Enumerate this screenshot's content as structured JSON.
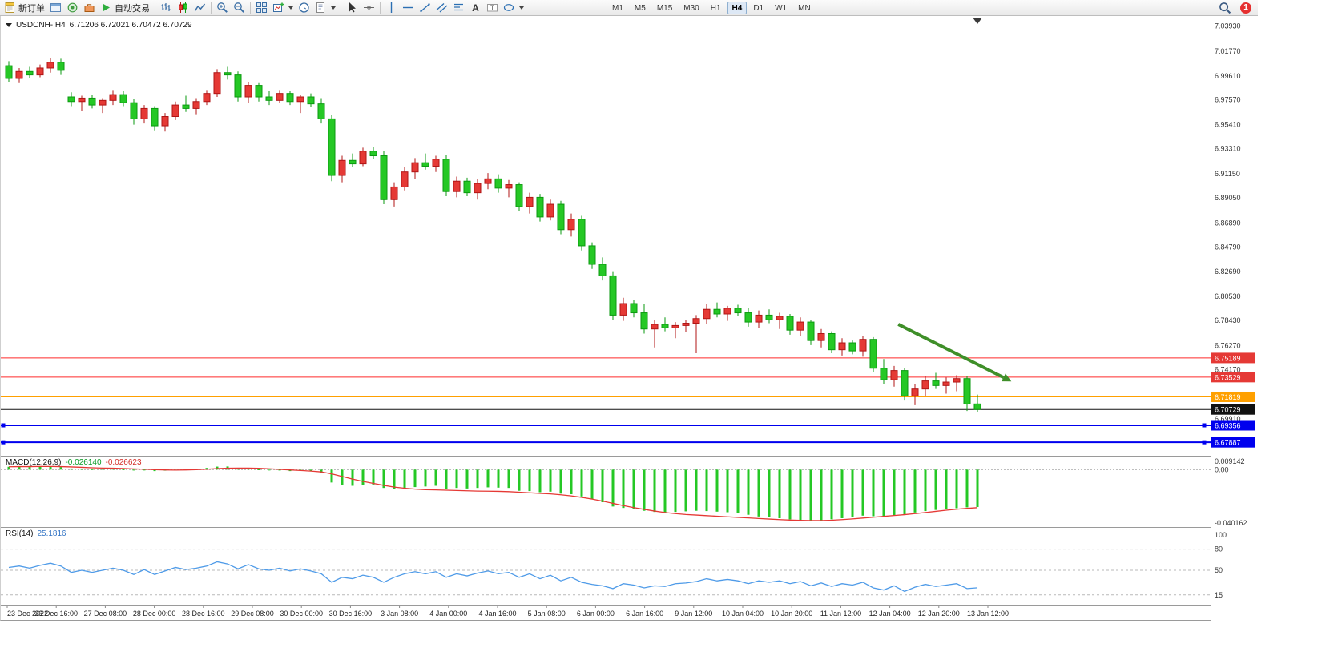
{
  "toolbar": {
    "new_order_label": "新订单",
    "auto_trading_label": "自动交易",
    "timeframes": [
      "M1",
      "M5",
      "M15",
      "M30",
      "H1",
      "H4",
      "D1",
      "W1",
      "MN"
    ],
    "active_timeframe": "H4",
    "notification_count": "1"
  },
  "chart": {
    "title_symbol": "USDCNH-,H4",
    "title_ohlc": "6.71206 6.72021 6.70472 6.70729"
  },
  "macd": {
    "label": "MACD(12,26,9)",
    "value1": "-0.026140",
    "value2": "-0.026623"
  },
  "rsi": {
    "label": "RSI(14)",
    "value": "25.1816"
  },
  "colors": {
    "up": "#e53935",
    "up_border": "#b01515",
    "down": "#25c825",
    "down_border": "#0b9a10",
    "macd_hist": "#25c825",
    "macd_signal": "#e53935",
    "rsi_line": "#4f9be8",
    "line_red": "#ff2a2a",
    "line_orange": "#ffa000",
    "line_blue": "#0000ee",
    "line_black": "#111111",
    "arrow_green": "#3f8f29",
    "badge": "#e53030"
  },
  "chart_data": [
    {
      "type": "candlestick",
      "symbol": "USDCNH-",
      "timeframe": "H4",
      "price_range": [
        6.6665,
        7.0446
      ],
      "y_axis_labels": [
        "7.03930",
        "7.01770",
        "6.99610",
        "6.97570",
        "6.95410",
        "6.93310",
        "6.91150",
        "6.89050",
        "6.86890",
        "6.84790",
        "6.82690",
        "6.80530",
        "6.78430",
        "6.76270",
        "6.74170",
        "6.72010",
        "6.69910",
        "6.67810"
      ],
      "x_axis_labels": [
        "23 Dec 2022",
        "23 Dec 16:00",
        "27 Dec 08:00",
        "28 Dec 00:00",
        "28 Dec 16:00",
        "29 Dec 08:00",
        "30 Dec 00:00",
        "30 Dec 16:00",
        "3 Jan 08:00",
        "4 Jan 00:00",
        "4 Jan 16:00",
        "5 Jan 08:00",
        "6 Jan 00:00",
        "6 Jan 16:00",
        "9 Jan 12:00",
        "10 Jan 04:00",
        "10 Jan 20:00",
        "11 Jan 12:00",
        "12 Jan 04:00",
        "12 Jan 20:00",
        "13 Jan 12:00"
      ],
      "h_lines": [
        {
          "price": 6.75189,
          "label": "6.75189",
          "color": "#ff2a2a",
          "tag_bg": "#e53935",
          "width": 1
        },
        {
          "price": 6.73529,
          "label": "6.73529",
          "color": "#ff2a2a",
          "tag_bg": "#e53935",
          "width": 1
        },
        {
          "price": 6.71819,
          "label": "6.71819",
          "color": "#ffa000",
          "tag_bg": "#ffa000",
          "width": 1
        },
        {
          "price": 6.70729,
          "label": "6.70729",
          "color": "#111111",
          "tag_bg": "#111111",
          "width": 1,
          "role": "current-price"
        },
        {
          "price": 6.69356,
          "label": "6.69356",
          "color": "#0000ee",
          "tag_bg": "#0000ee",
          "width": 2,
          "anchors": true
        },
        {
          "price": 6.67887,
          "label": "6.67887",
          "color": "#0000ee",
          "tag_bg": "#0000ee",
          "width": 2,
          "anchors": true
        }
      ],
      "arrow": {
        "from_index": 85.4,
        "from_price": 6.781,
        "to_index": 95.5,
        "to_price": 6.735
      },
      "shift_marker_index": 93,
      "ohlc": [
        [
          7.005,
          7.009,
          6.991,
          6.994
        ],
        [
          6.994,
          7.003,
          6.99,
          7.0
        ],
        [
          7.0,
          7.004,
          6.994,
          6.997
        ],
        [
          6.997,
          7.006,
          6.995,
          7.003
        ],
        [
          7.003,
          7.012,
          6.999,
          7.008
        ],
        [
          7.008,
          7.011,
          6.997,
          7.001
        ],
        [
          6.978,
          6.982,
          6.97,
          6.974
        ],
        [
          6.974,
          6.979,
          6.966,
          6.977
        ],
        [
          6.977,
          6.98,
          6.968,
          6.971
        ],
        [
          6.971,
          6.977,
          6.964,
          6.975
        ],
        [
          6.975,
          6.984,
          6.971,
          6.98
        ],
        [
          6.98,
          6.983,
          6.97,
          6.973
        ],
        [
          6.973,
          6.976,
          6.954,
          6.959
        ],
        [
          6.959,
          6.971,
          6.955,
          6.968
        ],
        [
          6.968,
          6.97,
          6.949,
          6.953
        ],
        [
          6.953,
          6.964,
          6.948,
          6.961
        ],
        [
          6.961,
          6.974,
          6.958,
          6.971
        ],
        [
          6.971,
          6.979,
          6.965,
          6.968
        ],
        [
          6.968,
          6.977,
          6.963,
          6.974
        ],
        [
          6.974,
          6.984,
          6.971,
          6.981
        ],
        [
          6.981,
          7.002,
          6.978,
          6.999
        ],
        [
          6.999,
          7.004,
          6.993,
          6.997
        ],
        [
          6.997,
          7.0,
          6.974,
          6.978
        ],
        [
          6.978,
          6.991,
          6.973,
          6.988
        ],
        [
          6.988,
          6.99,
          6.974,
          6.978
        ],
        [
          6.978,
          6.983,
          6.971,
          6.975
        ],
        [
          6.975,
          6.984,
          6.973,
          6.981
        ],
        [
          6.981,
          6.983,
          6.971,
          6.974
        ],
        [
          6.974,
          6.98,
          6.964,
          6.978
        ],
        [
          6.978,
          6.981,
          6.969,
          6.972
        ],
        [
          6.972,
          6.977,
          6.955,
          6.959
        ],
        [
          6.959,
          6.962,
          6.905,
          6.91
        ],
        [
          6.91,
          6.927,
          6.904,
          6.923
        ],
        [
          6.923,
          6.929,
          6.917,
          6.92
        ],
        [
          6.92,
          6.934,
          6.918,
          6.931
        ],
        [
          6.931,
          6.935,
          6.924,
          6.927
        ],
        [
          6.927,
          6.931,
          6.885,
          6.889
        ],
        [
          6.889,
          6.904,
          6.883,
          6.9
        ],
        [
          6.9,
          6.917,
          6.897,
          6.913
        ],
        [
          6.913,
          6.925,
          6.907,
          6.921
        ],
        [
          6.921,
          6.929,
          6.915,
          6.918
        ],
        [
          6.918,
          6.927,
          6.913,
          6.924
        ],
        [
          6.924,
          6.928,
          6.892,
          6.896
        ],
        [
          6.896,
          6.909,
          6.891,
          6.905
        ],
        [
          6.905,
          6.908,
          6.892,
          6.895
        ],
        [
          6.895,
          6.907,
          6.889,
          6.903
        ],
        [
          6.903,
          6.912,
          6.898,
          6.907
        ],
        [
          6.907,
          6.911,
          6.895,
          6.899
        ],
        [
          6.899,
          6.906,
          6.891,
          6.902
        ],
        [
          6.902,
          6.904,
          6.879,
          6.883
        ],
        [
          6.883,
          6.895,
          6.877,
          6.891
        ],
        [
          6.891,
          6.894,
          6.87,
          6.874
        ],
        [
          6.874,
          6.889,
          6.871,
          6.885
        ],
        [
          6.885,
          6.888,
          6.859,
          6.863
        ],
        [
          6.863,
          6.877,
          6.857,
          6.872
        ],
        [
          6.872,
          6.875,
          6.845,
          6.849
        ],
        [
          6.849,
          6.852,
          6.829,
          6.833
        ],
        [
          6.833,
          6.839,
          6.819,
          6.823
        ],
        [
          6.823,
          6.827,
          6.785,
          6.789
        ],
        [
          6.789,
          6.804,
          6.784,
          6.799
        ],
        [
          6.799,
          6.802,
          6.787,
          6.791
        ],
        [
          6.791,
          6.799,
          6.773,
          6.777
        ],
        [
          6.777,
          6.785,
          6.761,
          6.781
        ],
        [
          6.781,
          6.787,
          6.775,
          6.778
        ],
        [
          6.778,
          6.783,
          6.769,
          6.78
        ],
        [
          6.78,
          6.785,
          6.774,
          6.782
        ],
        [
          6.782,
          6.789,
          6.756,
          6.786
        ],
        [
          6.786,
          6.799,
          6.781,
          6.794
        ],
        [
          6.794,
          6.8,
          6.787,
          6.79
        ],
        [
          6.79,
          6.797,
          6.784,
          6.795
        ],
        [
          6.795,
          6.798,
          6.788,
          6.791
        ],
        [
          6.791,
          6.795,
          6.779,
          6.783
        ],
        [
          6.783,
          6.793,
          6.778,
          6.789
        ],
        [
          6.789,
          6.794,
          6.782,
          6.785
        ],
        [
          6.785,
          6.791,
          6.777,
          6.788
        ],
        [
          6.788,
          6.79,
          6.772,
          6.776
        ],
        [
          6.776,
          6.787,
          6.771,
          6.783
        ],
        [
          6.783,
          6.785,
          6.763,
          6.767
        ],
        [
          6.767,
          6.777,
          6.761,
          6.773
        ],
        [
          6.773,
          6.775,
          6.756,
          6.759
        ],
        [
          6.759,
          6.769,
          6.754,
          6.765
        ],
        [
          6.765,
          6.767,
          6.755,
          6.758
        ],
        [
          6.758,
          6.771,
          6.753,
          6.768
        ],
        [
          6.768,
          6.77,
          6.74,
          6.743
        ],
        [
          6.743,
          6.751,
          6.729,
          6.733
        ],
        [
          6.733,
          6.745,
          6.727,
          6.741
        ],
        [
          6.741,
          6.743,
          6.715,
          6.719
        ],
        [
          6.719,
          6.729,
          6.711,
          6.725
        ],
        [
          6.725,
          6.736,
          6.719,
          6.732
        ],
        [
          6.732,
          6.739,
          6.725,
          6.728
        ],
        [
          6.728,
          6.735,
          6.721,
          6.731
        ],
        [
          6.731,
          6.737,
          6.723,
          6.734
        ],
        [
          6.734,
          6.736,
          6.706,
          6.712
        ],
        [
          6.71206,
          6.72021,
          6.70472,
          6.70729
        ]
      ]
    },
    {
      "type": "bar",
      "name": "MACD",
      "range": [
        -0.040162,
        0.009142
      ],
      "scale_labels": [
        "0.009142",
        "0.00",
        "-0.040162"
      ],
      "histogram": [
        0.002,
        0.0022,
        0.0018,
        0.0021,
        0.0024,
        0.0018,
        0.0008,
        0.0005,
        0.0003,
        0.0005,
        0.0007,
        0.0002,
        -0.0006,
        -0.0003,
        -0.001,
        -0.0007,
        -0.0002,
        0.0002,
        0.0006,
        0.0012,
        0.0021,
        0.0022,
        0.0012,
        0.001,
        0.0002,
        -0.0004,
        -0.0006,
        -0.001,
        -0.0008,
        -0.0012,
        -0.0022,
        -0.009,
        -0.0108,
        -0.0113,
        -0.0108,
        -0.0104,
        -0.0128,
        -0.0134,
        -0.0128,
        -0.0122,
        -0.0118,
        -0.0113,
        -0.0133,
        -0.0128,
        -0.0132,
        -0.0128,
        -0.0124,
        -0.0126,
        -0.0128,
        -0.0148,
        -0.015,
        -0.0158,
        -0.0154,
        -0.0168,
        -0.0172,
        -0.0188,
        -0.0208,
        -0.0228,
        -0.0258,
        -0.0268,
        -0.0274,
        -0.0288,
        -0.0296,
        -0.0298,
        -0.0296,
        -0.0292,
        -0.0288,
        -0.029,
        -0.0294,
        -0.0298,
        -0.0306,
        -0.0316,
        -0.0328,
        -0.0334,
        -0.034,
        -0.0348,
        -0.0354,
        -0.0358,
        -0.0354,
        -0.0348,
        -0.034,
        -0.0332,
        -0.0322,
        -0.0326,
        -0.033,
        -0.0322,
        -0.0314,
        -0.03,
        -0.029,
        -0.0282,
        -0.0276,
        -0.027,
        -0.0264,
        -0.02614
      ],
      "signal": [
        0.002,
        0.0021,
        0.0021,
        0.0022,
        0.0022,
        0.0021,
        0.0019,
        0.0016,
        0.0013,
        0.0011,
        0.001,
        0.0008,
        0.0005,
        0.0003,
        0.0,
        -0.0002,
        -0.0003,
        -0.0002,
        0.0,
        0.0003,
        0.0007,
        0.001,
        0.0011,
        0.0011,
        0.0009,
        0.0006,
        0.0002,
        -0.0002,
        -0.0006,
        -0.001,
        -0.0016,
        -0.003,
        -0.0048,
        -0.0066,
        -0.0082,
        -0.0096,
        -0.011,
        -0.0122,
        -0.013,
        -0.0136,
        -0.014,
        -0.0142,
        -0.0144,
        -0.0146,
        -0.0148,
        -0.015,
        -0.0151,
        -0.0152,
        -0.0154,
        -0.0158,
        -0.0162,
        -0.0166,
        -0.017,
        -0.0176,
        -0.0184,
        -0.0194,
        -0.0206,
        -0.022,
        -0.0236,
        -0.0252,
        -0.0266,
        -0.0278,
        -0.029,
        -0.03,
        -0.0308,
        -0.0314,
        -0.0318,
        -0.0322,
        -0.0326,
        -0.033,
        -0.0334,
        -0.0338,
        -0.0342,
        -0.0346,
        -0.035,
        -0.0353,
        -0.0355,
        -0.0356,
        -0.0356,
        -0.0354,
        -0.035,
        -0.0345,
        -0.0339,
        -0.0333,
        -0.0327,
        -0.0321,
        -0.0315,
        -0.0308,
        -0.03,
        -0.0292,
        -0.0284,
        -0.0277,
        -0.0271,
        -0.0266
      ]
    },
    {
      "type": "line",
      "name": "RSI",
      "levels": [
        80,
        50,
        15
      ],
      "scale_labels": [
        "100",
        "80",
        "50",
        "15"
      ],
      "values": [
        54,
        56,
        53,
        57,
        60,
        56,
        47,
        50,
        47,
        50,
        53,
        50,
        44,
        51,
        44,
        49,
        54,
        51,
        53,
        56,
        62,
        59,
        52,
        58,
        52,
        50,
        53,
        49,
        52,
        49,
        45,
        33,
        40,
        38,
        43,
        40,
        33,
        40,
        45,
        48,
        45,
        48,
        40,
        45,
        42,
        46,
        49,
        45,
        47,
        40,
        45,
        38,
        43,
        35,
        40,
        33,
        30,
        28,
        24,
        31,
        29,
        25,
        28,
        27,
        31,
        32,
        34,
        38,
        35,
        37,
        35,
        31,
        35,
        33,
        35,
        31,
        34,
        28,
        32,
        27,
        31,
        29,
        33,
        25,
        22,
        28,
        20,
        26,
        30,
        27,
        29,
        31,
        24,
        25.18
      ]
    }
  ]
}
